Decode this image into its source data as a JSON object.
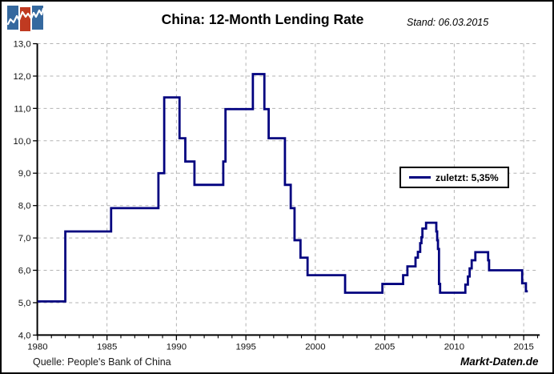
{
  "header": {
    "title": "China: 12-Month Lending Rate",
    "stand": "Stand: 06.03.2015",
    "logo": {
      "name": "markt-daten-logo",
      "bar_colors": [
        "#35699f",
        "#c03a21",
        "#35699f"
      ],
      "zigzag_color": "#ffffff"
    }
  },
  "legend": {
    "label": "zuletzt: 5,35%",
    "line_color": "#00007f"
  },
  "footer": {
    "source": "Quelle: People's Bank of China",
    "brand": "Markt-Daten.de"
  },
  "chart_data": {
    "type": "line",
    "step": true,
    "title": "China: 12-Month Lending Rate",
    "xlabel": "",
    "ylabel": "",
    "x_unit": "year",
    "y_unit": "percent",
    "xlim": [
      1980,
      2016.2
    ],
    "ylim": [
      4.0,
      13.0
    ],
    "yticks": [
      4,
      5,
      6,
      7,
      8,
      9,
      10,
      11,
      12,
      13
    ],
    "ytick_labels": [
      "4,0",
      "5,0",
      "6,0",
      "7,0",
      "8,0",
      "9,0",
      "10,0",
      "11,0",
      "12,0",
      "13,0"
    ],
    "xticks": [
      1980,
      1985,
      1990,
      1995,
      2000,
      2005,
      2010,
      2015
    ],
    "minor_xtick_every": 1,
    "grid": "dashed",
    "legend_position": "middle-right",
    "line_color": "#00007f",
    "grid_color": "#b3b3b3",
    "last_value": 5.35,
    "series": [
      {
        "name": "12-Month Lending Rate (%)",
        "end_x": 2015.3,
        "points": [
          [
            1980.0,
            5.04
          ],
          [
            1982.0,
            7.2
          ],
          [
            1985.3,
            7.92
          ],
          [
            1988.7,
            9.0
          ],
          [
            1989.12,
            11.34
          ],
          [
            1990.22,
            10.08
          ],
          [
            1990.64,
            9.36
          ],
          [
            1991.3,
            8.64
          ],
          [
            1993.37,
            9.36
          ],
          [
            1993.53,
            10.98
          ],
          [
            1995.5,
            12.06
          ],
          [
            1996.33,
            10.98
          ],
          [
            1996.64,
            10.08
          ],
          [
            1997.81,
            8.64
          ],
          [
            1998.23,
            7.92
          ],
          [
            1998.5,
            6.93
          ],
          [
            1998.93,
            6.39
          ],
          [
            1999.44,
            5.85
          ],
          [
            2002.14,
            5.31
          ],
          [
            2004.83,
            5.58
          ],
          [
            2006.32,
            5.85
          ],
          [
            2006.63,
            6.12
          ],
          [
            2007.21,
            6.39
          ],
          [
            2007.38,
            6.57
          ],
          [
            2007.55,
            6.84
          ],
          [
            2007.64,
            7.02
          ],
          [
            2007.71,
            7.29
          ],
          [
            2007.97,
            7.47
          ],
          [
            2008.71,
            7.2
          ],
          [
            2008.77,
            6.93
          ],
          [
            2008.83,
            6.66
          ],
          [
            2008.9,
            5.58
          ],
          [
            2008.98,
            5.31
          ],
          [
            2010.8,
            5.56
          ],
          [
            2010.98,
            5.81
          ],
          [
            2011.11,
            6.06
          ],
          [
            2011.26,
            6.31
          ],
          [
            2011.52,
            6.56
          ],
          [
            2012.44,
            6.31
          ],
          [
            2012.51,
            6.0
          ],
          [
            2014.89,
            5.6
          ],
          [
            2015.16,
            5.35
          ]
        ]
      }
    ]
  }
}
